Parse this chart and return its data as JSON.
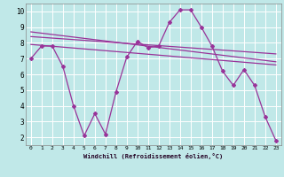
{
  "title": "",
  "xlabel": "Windchill (Refroidissement éolien,°C)",
  "ylabel": "",
  "bg_color": "#c0e8e8",
  "grid_color": "#ffffff",
  "line_color": "#993399",
  "xlim": [
    -0.5,
    23.5
  ],
  "ylim": [
    1.5,
    10.5
  ],
  "xticks": [
    0,
    1,
    2,
    3,
    4,
    5,
    6,
    7,
    8,
    9,
    10,
    11,
    12,
    13,
    14,
    15,
    16,
    17,
    18,
    19,
    20,
    21,
    22,
    23
  ],
  "yticks": [
    2,
    3,
    4,
    5,
    6,
    7,
    8,
    9,
    10
  ],
  "series1_x": [
    0,
    1,
    2,
    3,
    4,
    5,
    6,
    7,
    8,
    9,
    10,
    11,
    12,
    13,
    14,
    15,
    16,
    17,
    18,
    19,
    20,
    21,
    22,
    23
  ],
  "series1_y": [
    7.0,
    7.8,
    7.8,
    6.5,
    4.0,
    2.1,
    3.5,
    2.2,
    4.9,
    7.1,
    8.1,
    7.7,
    7.8,
    9.3,
    10.1,
    10.1,
    9.0,
    7.8,
    6.2,
    5.3,
    6.3,
    5.3,
    3.3,
    1.8
  ],
  "series2_x": [
    0,
    23
  ],
  "series2_y": [
    8.7,
    6.8
  ],
  "series3_x": [
    0,
    23
  ],
  "series3_y": [
    8.4,
    7.3
  ],
  "series4_x": [
    0,
    23
  ],
  "series4_y": [
    7.9,
    6.6
  ]
}
